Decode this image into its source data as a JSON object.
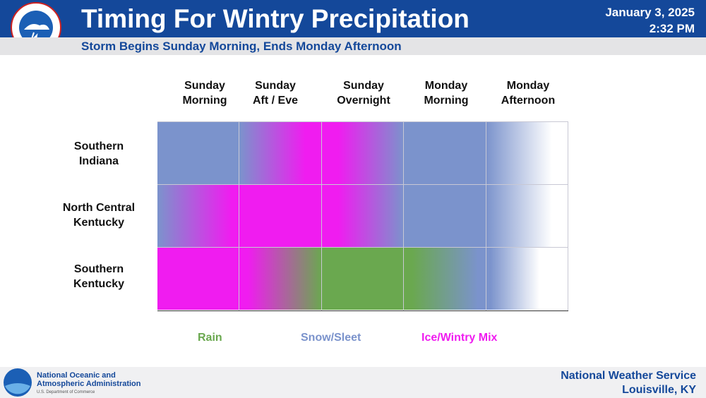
{
  "header": {
    "title": "Timing For Wintry Precipitation",
    "date": "January 3, 2025",
    "time": "2:32 PM",
    "subtitle": "Storm Begins Sunday Morning, Ends Monday Afternoon"
  },
  "table": {
    "columns": [
      [
        "Sunday",
        "Morning"
      ],
      [
        "Sunday",
        "Aft / Eve"
      ],
      [
        "Sunday",
        "Overnight"
      ],
      [
        "Monday",
        "Morning"
      ],
      [
        "Monday",
        "Afternoon"
      ]
    ],
    "rows": [
      [
        "Southern",
        "Indiana"
      ],
      [
        "North Central",
        "Kentucky"
      ],
      [
        "Southern",
        "Kentucky"
      ]
    ]
  },
  "legend": [
    "Rain",
    "Snow/Sleet",
    "Ice/Wintry Mix"
  ],
  "footer": {
    "agency": [
      "National Oceanic and",
      "Atmospheric Administration"
    ],
    "department": "U.S. Department of Commerce",
    "office": "National Weather Service",
    "location": "Louisville, KY"
  }
}
